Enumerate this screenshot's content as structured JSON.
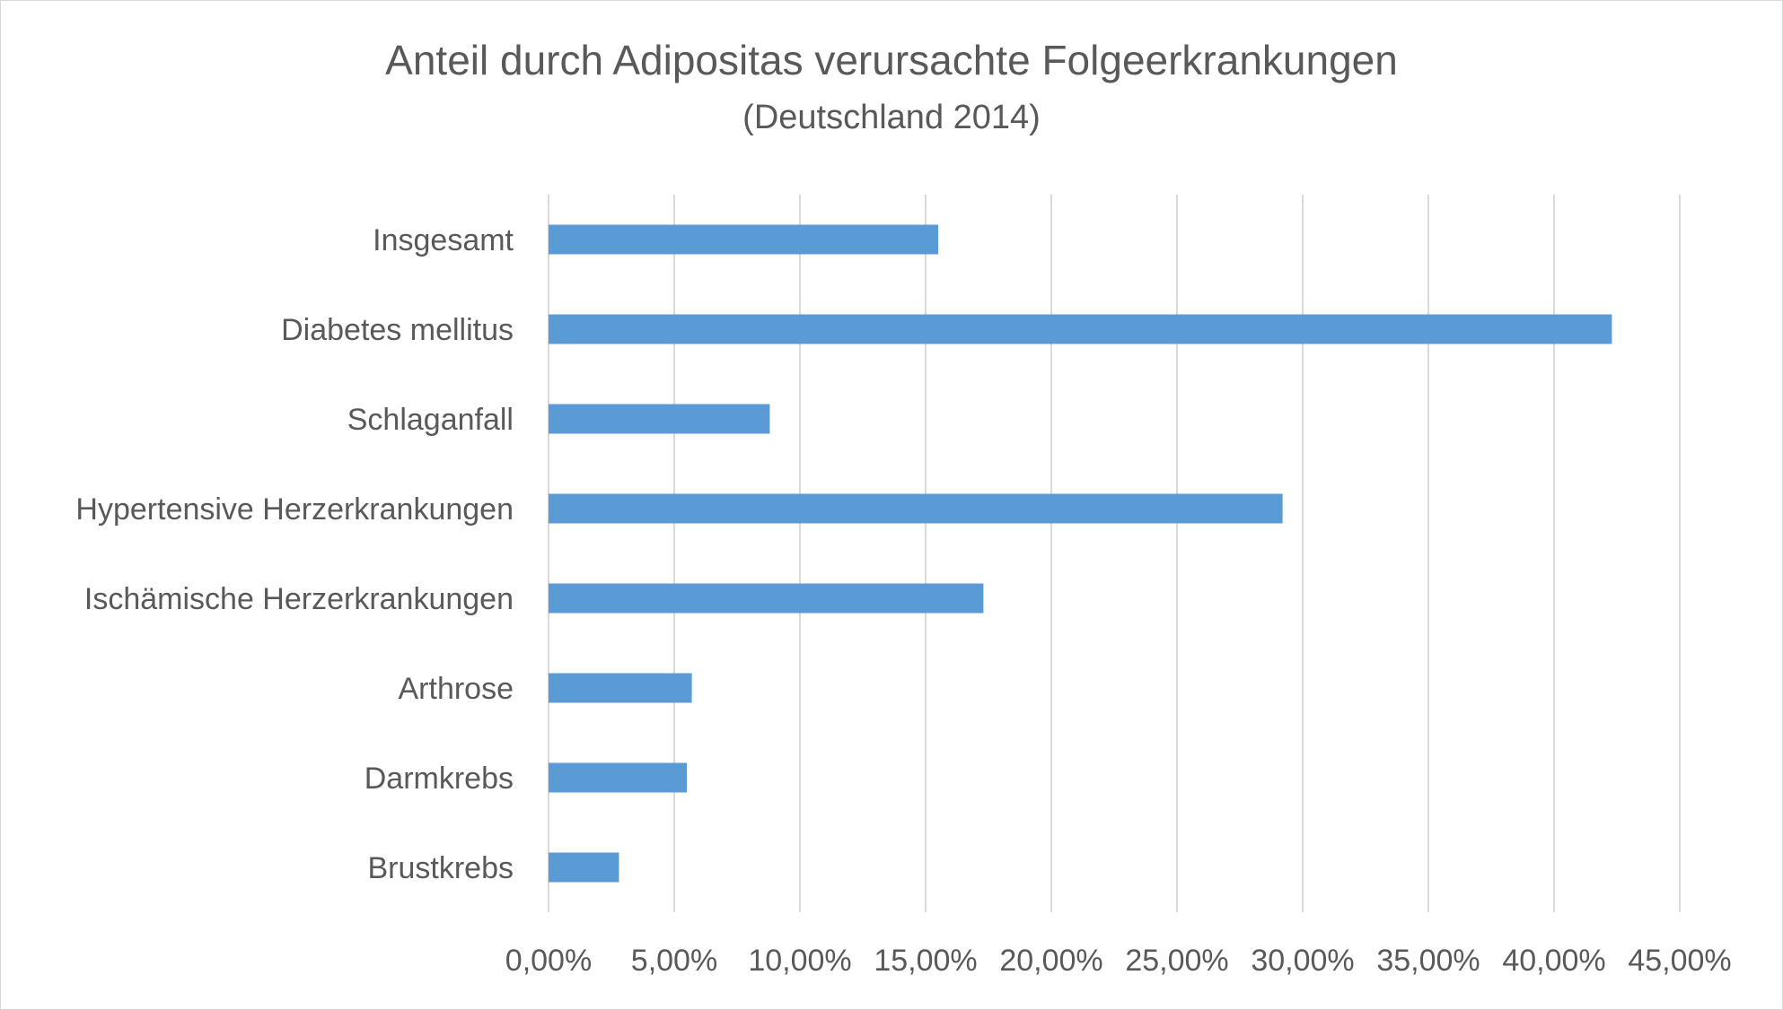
{
  "chart_data": {
    "type": "bar",
    "orientation": "horizontal",
    "title": "Anteil durch Adipositas verursachte Folgeerkrankungen",
    "subtitle": "(Deutschland 2014)",
    "categories": [
      "Insgesamt",
      "Diabetes mellitus",
      "Schlaganfall",
      "Hypertensive Herzerkrankungen",
      "Ischämische Herzerkrankungen",
      "Arthrose",
      "Darmkrebs",
      "Brustkrebs"
    ],
    "values": [
      15.5,
      42.3,
      8.8,
      29.2,
      17.3,
      5.7,
      5.5,
      2.8
    ],
    "xlim": [
      0,
      45
    ],
    "xticks": [
      0,
      5,
      10,
      15,
      20,
      25,
      30,
      35,
      40,
      45
    ],
    "xtick_labels": [
      "0,00%",
      "5,00%",
      "10,00%",
      "15,00%",
      "20,00%",
      "25,00%",
      "30,00%",
      "35,00%",
      "40,00%",
      "45,00%"
    ],
    "grid": "vertical",
    "legend": "none",
    "bar_color": "#5b9bd5",
    "grid_color": "#d9d9d9"
  }
}
